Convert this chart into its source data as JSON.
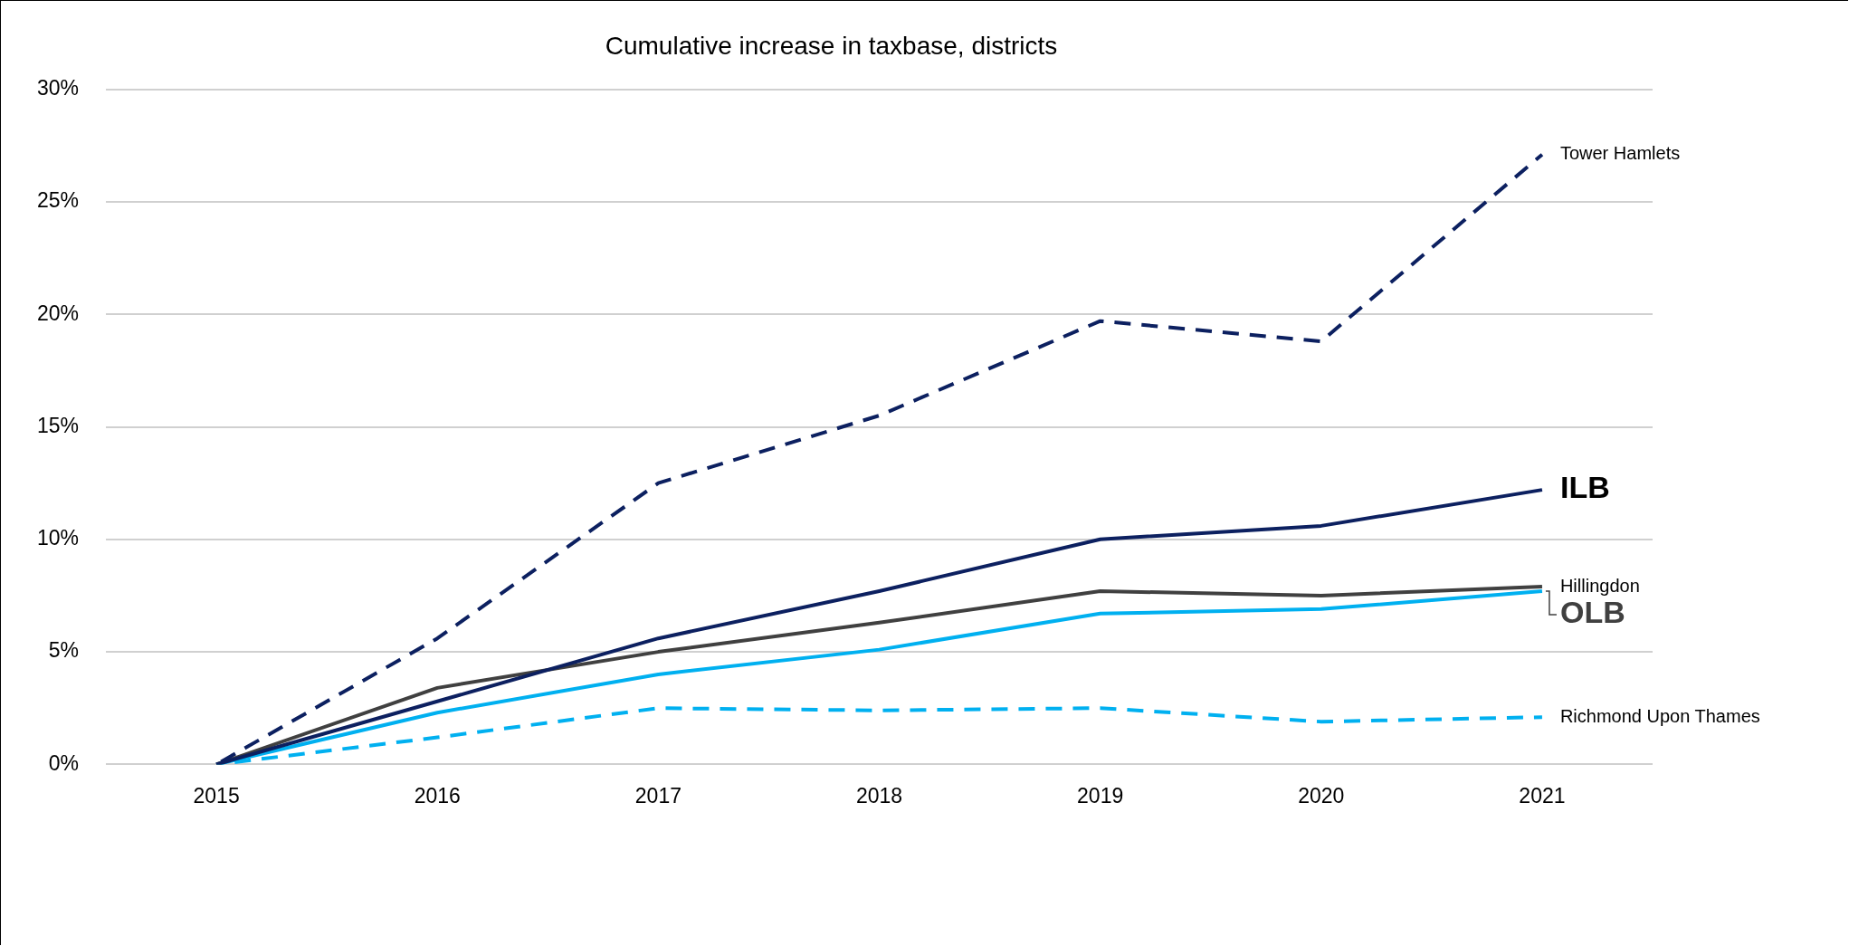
{
  "chart_data": {
    "type": "line",
    "title": "Cumulative increase in taxbase, districts",
    "categories": [
      "2015",
      "2016",
      "2017",
      "2018",
      "2019",
      "2020",
      "2021"
    ],
    "series": [
      {
        "name": "Tower Hamlets",
        "color": "#0c2060",
        "line_style": "dashed",
        "values": [
          0,
          5.6,
          12.5,
          15.5,
          19.7,
          18.8,
          27.1
        ]
      },
      {
        "name": "ILB",
        "color": "#0c2060",
        "line_style": "solid",
        "values": [
          0,
          2.8,
          5.6,
          7.7,
          10.0,
          10.6,
          12.2
        ]
      },
      {
        "name": "Hillingdon",
        "color": "#404040",
        "line_style": "solid",
        "values": [
          0,
          3.4,
          5.0,
          6.3,
          7.7,
          7.5,
          7.9
        ]
      },
      {
        "name": "OLB",
        "color": "#00b0f0",
        "line_style": "solid",
        "values": [
          0,
          2.3,
          4.0,
          5.1,
          6.7,
          6.9,
          7.7
        ]
      },
      {
        "name": "Richmond Upon Thames",
        "color": "#00b0f0",
        "line_style": "dashed",
        "values": [
          0,
          1.2,
          2.5,
          2.4,
          2.5,
          1.9,
          2.1
        ]
      }
    ],
    "ylim": [
      0,
      30
    ],
    "yticks": [
      {
        "value": 0,
        "label": "0%"
      },
      {
        "value": 5,
        "label": "5%"
      },
      {
        "value": 10,
        "label": "10%"
      },
      {
        "value": 15,
        "label": "15%"
      },
      {
        "value": 20,
        "label": "20%"
      },
      {
        "value": 25,
        "label": "25%"
      },
      {
        "value": 30,
        "label": "30%"
      }
    ],
    "grid": "y",
    "legend": false,
    "marker": "none"
  }
}
